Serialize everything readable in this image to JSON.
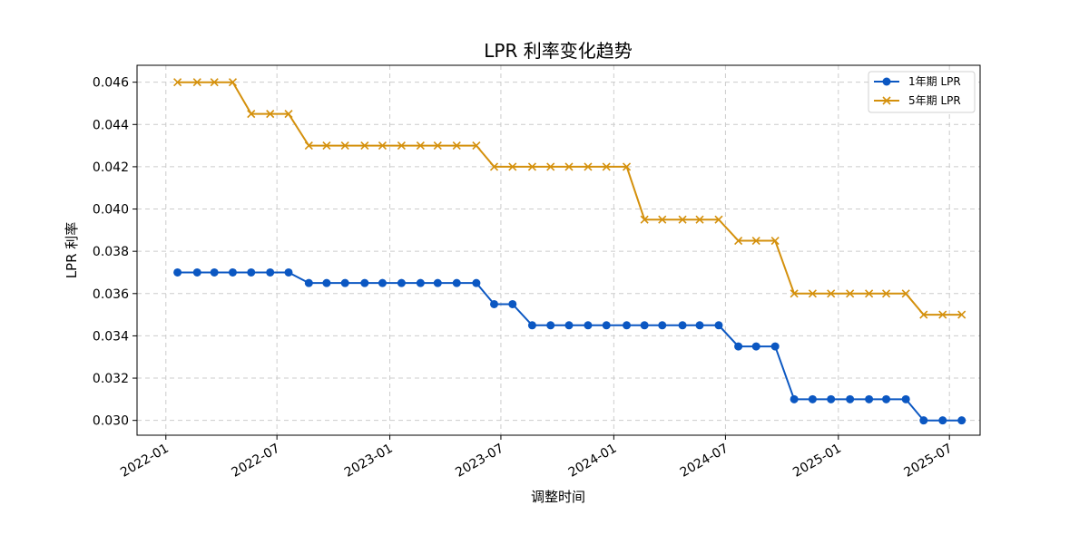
{
  "chart_data": {
    "type": "line",
    "title": "LPR 利率变化趋势",
    "xlabel": "调整时间",
    "ylabel": "LPR 利率",
    "ylim": [
      0.0293,
      0.0468
    ],
    "x_range": [
      "2021-11-15",
      "2025-08-20"
    ],
    "grid": true,
    "legend_position": "top-right",
    "yticks": [
      "0.030",
      "0.032",
      "0.034",
      "0.036",
      "0.038",
      "0.040",
      "0.042",
      "0.044",
      "0.046"
    ],
    "xticks": [
      "2022-01",
      "2022-07",
      "2023-01",
      "2023-07",
      "2024-01",
      "2024-07",
      "2025-01",
      "2025-07"
    ],
    "x": [
      "2022-01-20",
      "2022-02-21",
      "2022-03-21",
      "2022-04-20",
      "2022-05-20",
      "2022-06-20",
      "2022-07-20",
      "2022-08-22",
      "2022-09-20",
      "2022-10-20",
      "2022-11-21",
      "2022-12-20",
      "2023-01-20",
      "2023-02-20",
      "2023-03-20",
      "2023-04-20",
      "2023-05-22",
      "2023-06-20",
      "2023-07-20",
      "2023-08-21",
      "2023-09-20",
      "2023-10-20",
      "2023-11-20",
      "2023-12-20",
      "2024-01-22",
      "2024-02-20",
      "2024-03-20",
      "2024-04-22",
      "2024-05-20",
      "2024-06-20",
      "2024-07-22",
      "2024-08-20",
      "2024-09-20",
      "2024-10-21",
      "2024-11-20",
      "2024-12-20",
      "2025-01-20",
      "2025-02-20",
      "2025-03-20",
      "2025-04-21",
      "2025-05-20",
      "2025-06-20",
      "2025-07-21"
    ],
    "series": [
      {
        "name": "1年期 LPR",
        "color": "#0b57c2",
        "marker": "circle",
        "values": [
          0.037,
          0.037,
          0.037,
          0.037,
          0.037,
          0.037,
          0.037,
          0.0365,
          0.0365,
          0.0365,
          0.0365,
          0.0365,
          0.0365,
          0.0365,
          0.0365,
          0.0365,
          0.0365,
          0.0355,
          0.0355,
          0.0345,
          0.0345,
          0.0345,
          0.0345,
          0.0345,
          0.0345,
          0.0345,
          0.0345,
          0.0345,
          0.0345,
          0.0345,
          0.0335,
          0.0335,
          0.0335,
          0.031,
          0.031,
          0.031,
          0.031,
          0.031,
          0.031,
          0.031,
          0.03,
          0.03,
          0.03
        ]
      },
      {
        "name": "5年期 LPR",
        "color": "#d4900c",
        "marker": "x",
        "values": [
          0.046,
          0.046,
          0.046,
          0.046,
          0.0445,
          0.0445,
          0.0445,
          0.043,
          0.043,
          0.043,
          0.043,
          0.043,
          0.043,
          0.043,
          0.043,
          0.043,
          0.043,
          0.042,
          0.042,
          0.042,
          0.042,
          0.042,
          0.042,
          0.042,
          0.042,
          0.0395,
          0.0395,
          0.0395,
          0.0395,
          0.0395,
          0.0385,
          0.0385,
          0.0385,
          0.036,
          0.036,
          0.036,
          0.036,
          0.036,
          0.036,
          0.036,
          0.035,
          0.035,
          0.035
        ]
      }
    ]
  }
}
